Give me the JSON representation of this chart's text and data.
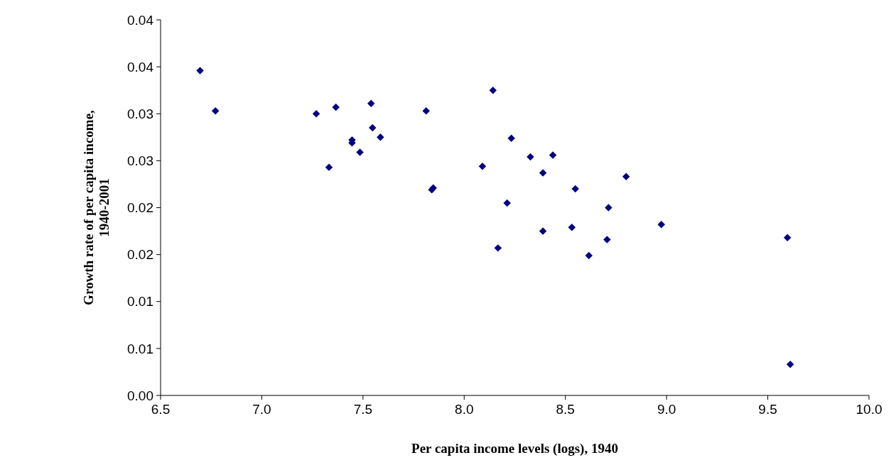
{
  "chart_data": {
    "type": "scatter",
    "xlabel": "Per capita income levels (logs), 1940",
    "ylabel": "Growth rate of per capita income, 1940-2001",
    "x": [
      6.695,
      6.771,
      7.269,
      7.366,
      7.332,
      7.446,
      7.446,
      7.54,
      7.547,
      7.485,
      7.586,
      7.812,
      7.84,
      7.847,
      8.09,
      8.142,
      8.167,
      8.212,
      8.233,
      8.327,
      8.389,
      8.438,
      8.389,
      8.532,
      8.549,
      8.616,
      8.706,
      8.713,
      8.8,
      8.974,
      9.597,
      9.611
    ],
    "series": [
      {
        "color": "#000080",
        "values": [
          0.0346,
          0.0303,
          0.03,
          0.0307,
          0.0243,
          0.0272,
          0.0269,
          0.0311,
          0.0285,
          0.0259,
          0.0275,
          0.0303,
          0.0219,
          0.0221,
          0.0244,
          0.0325,
          0.0157,
          0.0205,
          0.0274,
          0.0254,
          0.0237,
          0.0256,
          0.0175,
          0.0179,
          0.022,
          0.0149,
          0.0166,
          0.02,
          0.0233,
          0.0182,
          0.0168,
          0.0033
        ]
      }
    ],
    "xlim": [
      6.5,
      10.0
    ],
    "xticks": [
      {
        "value": 6.5,
        "label": "6.5"
      },
      {
        "value": 7,
        "label": "7.0"
      },
      {
        "value": 7.5,
        "label": "7.5"
      },
      {
        "value": 8,
        "label": "8.0"
      },
      {
        "value": 8.5,
        "label": "8.5"
      },
      {
        "value": 9,
        "label": "9.0"
      },
      {
        "value": 9.5,
        "label": "9.5"
      },
      {
        "value": 10,
        "label": "10.0"
      }
    ],
    "ylim": [
      0,
      0.04
    ],
    "yticks": [
      {
        "value": 0,
        "label": "0.00"
      },
      {
        "value": 0.005,
        "label": "0.01"
      },
      {
        "value": 0.01,
        "label": "0.01"
      },
      {
        "value": 0.015,
        "label": "0.02"
      },
      {
        "value": 0.02,
        "label": "0.02"
      },
      {
        "value": 0.025,
        "label": "0.03"
      },
      {
        "value": 0.03,
        "label": "0.03"
      },
      {
        "value": 0.035,
        "label": "0.04"
      },
      {
        "value": 0.04,
        "label": "0.04"
      }
    ],
    "marker": "diamond",
    "grid": false
  }
}
